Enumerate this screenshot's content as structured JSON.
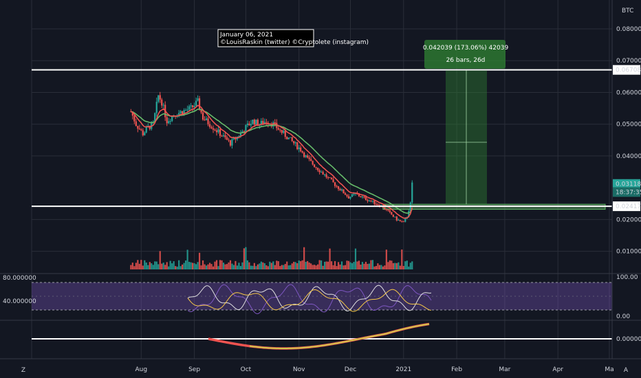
{
  "symbol": "BTC",
  "annotation": {
    "line1": "January 06, 2021",
    "line2": "©LouisRaskin (twitter) ©Cryptolete (instagram)"
  },
  "measure": {
    "line1": "0.042039 (173.06%) 42039",
    "line2": "26 bars, 26d"
  },
  "price_tags": [
    {
      "label": "0.067089",
      "value": 0.067089,
      "style": "white"
    },
    {
      "label": "0.031182",
      "value": 0.031182,
      "style": "teal"
    },
    {
      "label": "18:37:35",
      "value": 0.02865,
      "style": "teal-dark"
    },
    {
      "label": "0.024170",
      "value": 0.02417,
      "style": "white"
    }
  ],
  "colors": {
    "background": "#131722",
    "grid": "#2a2e39",
    "up": "#26a69a",
    "down": "#ef5350",
    "ema_fast": "#ef5350",
    "ema_slow": "#66bb6a",
    "rsi_band": "#7e57c2",
    "measure_box": "#2e7d32"
  },
  "axis": {
    "zoom_button": "Z",
    "auto_button": "A"
  },
  "chart_data": {
    "type": "candlestick",
    "title": "",
    "price_axis": {
      "ticks": [
        "0.080000",
        "0.070000",
        "0.060000",
        "0.050000",
        "0.040000",
        "0.020000",
        "0.010000"
      ],
      "tick_values": [
        0.08,
        0.07,
        0.06,
        0.05,
        0.04,
        0.02,
        0.01
      ],
      "range": [
        0.003,
        0.088
      ]
    },
    "time_axis": {
      "labels": [
        "Aug",
        "Sep",
        "Oct",
        "Nov",
        "Dec",
        "2021",
        "Feb",
        "Mar",
        "Apr",
        "Ma"
      ],
      "dates": [
        "2020-08-01",
        "2020-09-01",
        "2020-10-01",
        "2020-11-01",
        "2020-12-01",
        "2021-01-01",
        "2021-02-01",
        "2021-03-01",
        "2021-04-01",
        "2021-05-01"
      ]
    },
    "price_path": [
      [
        "2020-07-26",
        0.054
      ],
      [
        "2020-07-29",
        0.05
      ],
      [
        "2020-08-02",
        0.047
      ],
      [
        "2020-08-05",
        0.049
      ],
      [
        "2020-08-08",
        0.05
      ],
      [
        "2020-08-11",
        0.059
      ],
      [
        "2020-08-13",
        0.057
      ],
      [
        "2020-08-16",
        0.051
      ],
      [
        "2020-08-20",
        0.053
      ],
      [
        "2020-08-25",
        0.054
      ],
      [
        "2020-08-30",
        0.055
      ],
      [
        "2020-09-03",
        0.057
      ],
      [
        "2020-09-06",
        0.052
      ],
      [
        "2020-09-10",
        0.05
      ],
      [
        "2020-09-14",
        0.048
      ],
      [
        "2020-09-18",
        0.046
      ],
      [
        "2020-09-22",
        0.044
      ],
      [
        "2020-09-26",
        0.046
      ],
      [
        "2020-10-01",
        0.049
      ],
      [
        "2020-10-05",
        0.051
      ],
      [
        "2020-10-09",
        0.05
      ],
      [
        "2020-10-13",
        0.051
      ],
      [
        "2020-10-17",
        0.05
      ],
      [
        "2020-10-21",
        0.048
      ],
      [
        "2020-10-25",
        0.046
      ],
      [
        "2020-10-29",
        0.044
      ],
      [
        "2020-11-02",
        0.042
      ],
      [
        "2020-11-06",
        0.039
      ],
      [
        "2020-11-10",
        0.037
      ],
      [
        "2020-11-14",
        0.035
      ],
      [
        "2020-11-18",
        0.033
      ],
      [
        "2020-11-22",
        0.031
      ],
      [
        "2020-11-26",
        0.029
      ],
      [
        "2020-11-30",
        0.027
      ],
      [
        "2020-12-04",
        0.028
      ],
      [
        "2020-12-08",
        0.027
      ],
      [
        "2020-12-12",
        0.026
      ],
      [
        "2020-12-16",
        0.025
      ],
      [
        "2020-12-20",
        0.024
      ],
      [
        "2020-12-24",
        0.022
      ],
      [
        "2020-12-28",
        0.02
      ],
      [
        "2021-01-01",
        0.019
      ],
      [
        "2021-01-03",
        0.021
      ],
      [
        "2021-01-05",
        0.025
      ],
      [
        "2021-01-06",
        0.0312
      ]
    ],
    "levels": [
      0.067089,
      0.02417
    ],
    "demand_zone": {
      "from": 0.0232,
      "to": 0.0248,
      "start": "2020-12-20",
      "end": "2021-05-01"
    },
    "rsi_axis": {
      "ticks": [
        "80.000000",
        "40.000000"
      ],
      "right_ticks": [
        "100.00",
        "0.00"
      ]
    },
    "oscillator_axis": {
      "right_ticks": [
        "0.000000"
      ]
    }
  }
}
